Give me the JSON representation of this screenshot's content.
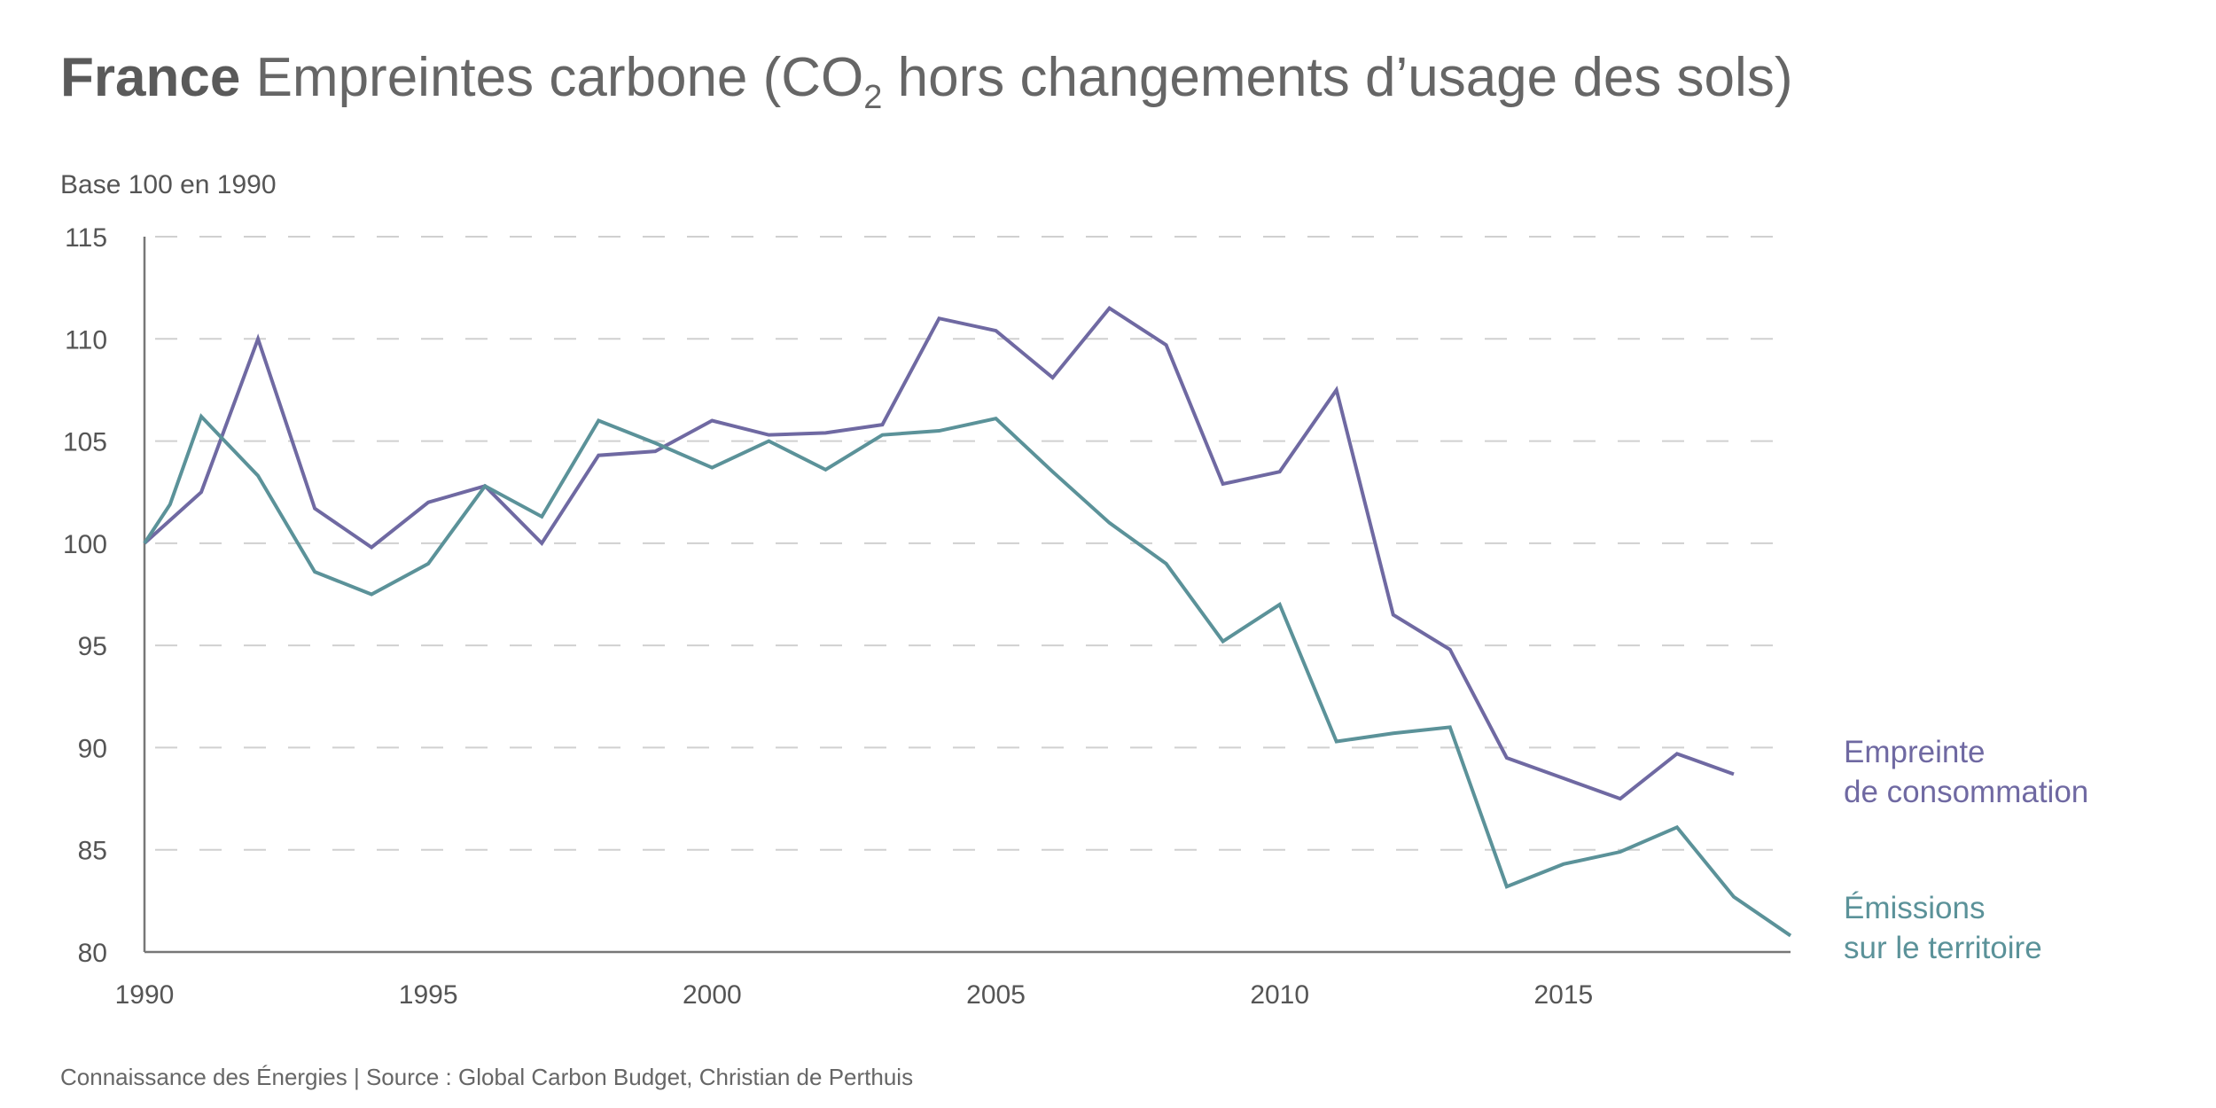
{
  "title": {
    "bold": "France",
    "rest_before": "Empreintes carbone (CO",
    "sub": "2",
    "rest_after": " hors changements d’usage des sols)"
  },
  "subtitle": "Base 100 en 1990",
  "source": "Connaissance des Énergies | Source : Global Carbon Budget, Christian de Perthuis",
  "chart_data": {
    "type": "line",
    "title": "France Empreintes carbone (CO2 hors changements d’usage des sols)",
    "ylabel": "Base 100 en 1990",
    "xlim": [
      1990,
      2019
    ],
    "ylim": [
      80,
      115
    ],
    "xticks": [
      1990,
      1995,
      2000,
      2005,
      2010,
      2015
    ],
    "yticks": [
      80,
      85,
      90,
      95,
      100,
      105,
      110,
      115
    ],
    "grid": "horizontal dashed",
    "series": [
      {
        "name": "Empreinte de consommation",
        "label_lines": [
          "Empreinte",
          "de consommation"
        ],
        "color": "#6f69a2",
        "x": [
          1990,
          1991,
          1992,
          1993,
          1994,
          1995,
          1996,
          1997,
          1998,
          1999,
          2000,
          2001,
          2002,
          2003,
          2004,
          2005,
          2006,
          2007,
          2008,
          2009,
          2010,
          2011,
          2012,
          2013,
          2014,
          2015,
          2016,
          2017,
          2018
        ],
        "y": [
          100,
          102.5,
          110,
          101.7,
          99.8,
          102,
          102.8,
          100,
          104.3,
          104.5,
          106,
          105.3,
          105.4,
          105.8,
          111,
          110.4,
          108.1,
          111.5,
          109.7,
          102.9,
          103.5,
          107.5,
          96.5,
          94.8,
          89.5,
          88.5,
          87.5,
          89.7,
          88.7
        ]
      },
      {
        "name": "Émissions sur le territoire",
        "label_lines": [
          "Émissions",
          "sur le territoire"
        ],
        "color": "#5b9299",
        "x": [
          1990,
          1990.45,
          1991,
          1992,
          1993,
          1994,
          1995,
          1996,
          1997,
          1998,
          1999,
          2000,
          2001,
          2002,
          2003,
          2004,
          2005,
          2006,
          2007,
          2008,
          2009,
          2010,
          2011,
          2012,
          2013,
          2014,
          2015,
          2016,
          2017,
          2018,
          2019
        ],
        "y": [
          100,
          101.9,
          106.2,
          103.3,
          98.6,
          97.5,
          99,
          102.8,
          101.3,
          106,
          104.9,
          103.7,
          105,
          103.6,
          105.3,
          105.5,
          106.1,
          103.5,
          101,
          99,
          95.2,
          97,
          90.3,
          90.7,
          91,
          83.2,
          84.3,
          84.9,
          86.1,
          82.7,
          80.8
        ]
      }
    ]
  }
}
